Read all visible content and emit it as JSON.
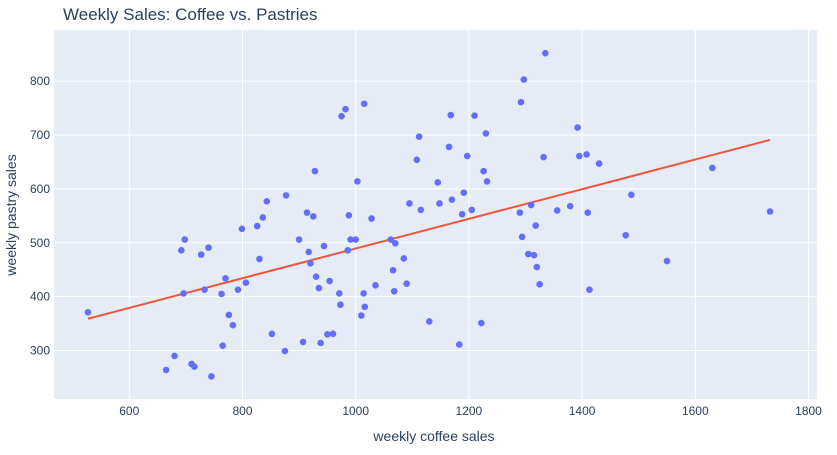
{
  "chart_data": {
    "type": "scatter",
    "title": "Weekly Sales: Coffee vs. Pastries",
    "xlabel": "weekly coffee sales",
    "ylabel": "weekly pastry sales",
    "xlim": [
      467,
      1815
    ],
    "ylim": [
      210,
      895
    ],
    "x_ticks": [
      600,
      800,
      1000,
      1200,
      1400,
      1600,
      1800
    ],
    "y_ticks": [
      300,
      400,
      500,
      600,
      700,
      800
    ],
    "x_tick_labels": [
      "600",
      "800",
      "1000",
      "1200",
      "1400",
      "1600",
      "1800"
    ],
    "y_tick_labels": [
      "300",
      "400",
      "500",
      "600",
      "700",
      "800"
    ],
    "grid": true,
    "legend": "none",
    "colors": {
      "points": "#636efa",
      "trendline": "#ef553b",
      "plot_bg": "#e5ecf6",
      "grid": "#ffffff",
      "text": "#2a3f5f"
    },
    "series": [
      {
        "kind": "points",
        "x": [
          527,
          665,
          680,
          692,
          696,
          698,
          710,
          715,
          727,
          733,
          740,
          745,
          763,
          765,
          770,
          776,
          783,
          792,
          799,
          806,
          826,
          830,
          836,
          843,
          852,
          875,
          877,
          900,
          907,
          914,
          917,
          920,
          925,
          928,
          930,
          935,
          938,
          944,
          950,
          954,
          960,
          971,
          973,
          975,
          982,
          986,
          988,
          991,
          1000,
          1003,
          1010,
          1014,
          1015,
          1016,
          1028,
          1035,
          1062,
          1066,
          1068,
          1070,
          1085,
          1090,
          1095,
          1108,
          1112,
          1115,
          1130,
          1145,
          1148,
          1165,
          1168,
          1170,
          1183,
          1188,
          1191,
          1197,
          1205,
          1210,
          1222,
          1226,
          1230,
          1232,
          1290,
          1292,
          1294,
          1297,
          1305,
          1310,
          1315,
          1318,
          1320,
          1325,
          1332,
          1335,
          1356,
          1379,
          1392,
          1395,
          1408,
          1410,
          1413,
          1430,
          1477,
          1487,
          1550,
          1630,
          1732
        ],
        "y": [
          371,
          264,
          290,
          486,
          406,
          506,
          275,
          270,
          478,
          413,
          491,
          252,
          405,
          309,
          434,
          366,
          347,
          413,
          526,
          426,
          531,
          470,
          547,
          577,
          331,
          299,
          588,
          506,
          316,
          556,
          483,
          462,
          549,
          633,
          437,
          416,
          314,
          494,
          330,
          429,
          331,
          406,
          385,
          735,
          748,
          486,
          551,
          506,
          506,
          614,
          365,
          406,
          758,
          381,
          545,
          421,
          506,
          449,
          410,
          499,
          471,
          424,
          573,
          654,
          697,
          561,
          354,
          612,
          573,
          678,
          737,
          580,
          311,
          553,
          593,
          661,
          561,
          736,
          351,
          633,
          703,
          614,
          556,
          761,
          511,
          803,
          479,
          570,
          477,
          532,
          455,
          423,
          659,
          852,
          560,
          568,
          714,
          661,
          664,
          556,
          413,
          647,
          514,
          589,
          466,
          639,
          558
        ]
      },
      {
        "kind": "trendline",
        "x": [
          527,
          1732
        ],
        "y": [
          359,
          691
        ]
      }
    ]
  }
}
